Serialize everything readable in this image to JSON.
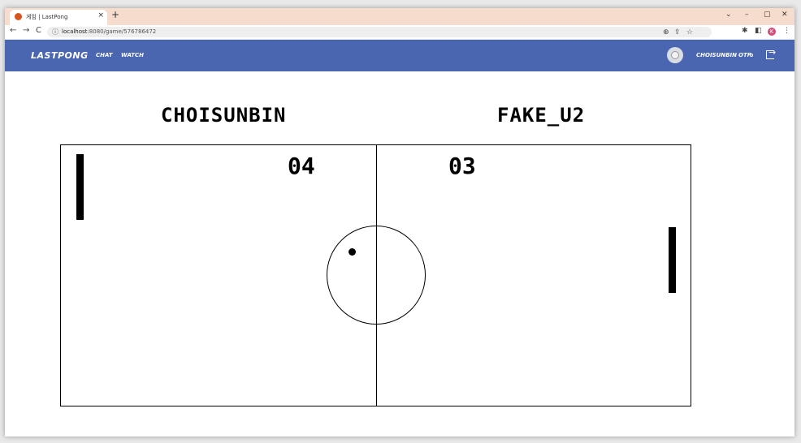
{
  "browser": {
    "tab_title": "게임 | LastPong",
    "new_tab": "+",
    "tab_close": "×",
    "window_controls": [
      "⌄",
      "–",
      "▢",
      "✕"
    ],
    "nav": [
      "←",
      "→",
      "C"
    ],
    "url_host": "localhost",
    "url_rest": ":8080/game/576786472",
    "toolbar_icons": [
      "zoom-icon",
      "share-icon",
      "star-icon",
      "extensions-icon",
      "sidepanel-icon"
    ],
    "profile_initial": "K"
  },
  "header": {
    "logo": "LASTPONG",
    "nav": {
      "chat": "CHAT",
      "watch": "WATCH"
    },
    "username": "CHOISUNBIN",
    "otp": "OTP",
    "colors": {
      "bar": "#4a66b0"
    }
  },
  "game": {
    "left_player": "CHOISUNBIN",
    "right_player": "FAKE_U2",
    "left_score": "04",
    "right_score": "03"
  }
}
